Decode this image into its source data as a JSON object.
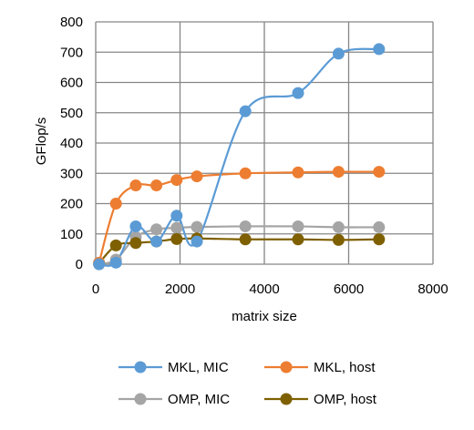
{
  "chart_data": {
    "type": "line",
    "title": "",
    "xlabel": "matrix size",
    "ylabel": "GFlop/s",
    "xlim": [
      0,
      8000
    ],
    "ylim": [
      0,
      800
    ],
    "x_ticks": [
      0,
      2000,
      4000,
      6000,
      8000
    ],
    "y_ticks": [
      0,
      100,
      200,
      300,
      400,
      500,
      600,
      700,
      800
    ],
    "grid": true,
    "legend_position": "bottom",
    "series": [
      {
        "name": "MKL, MIC",
        "color": "#5b9bd5",
        "points": [
          [
            80,
            0
          ],
          [
            480,
            5
          ],
          [
            950,
            125
          ],
          [
            1440,
            75
          ],
          [
            1920,
            160
          ],
          [
            2400,
            75
          ],
          [
            3550,
            505
          ],
          [
            4800,
            565
          ],
          [
            5760,
            695
          ],
          [
            6720,
            710
          ]
        ]
      },
      {
        "name": "MKL, host",
        "color": "#ed7d31",
        "points": [
          [
            80,
            5
          ],
          [
            480,
            200
          ],
          [
            950,
            260
          ],
          [
            1440,
            260
          ],
          [
            1920,
            278
          ],
          [
            2400,
            290
          ],
          [
            3550,
            300
          ],
          [
            4800,
            303
          ],
          [
            5760,
            305
          ],
          [
            6720,
            305
          ]
        ]
      },
      {
        "name": "OMP, MIC",
        "color": "#a5a5a5",
        "points": [
          [
            80,
            0
          ],
          [
            480,
            15
          ],
          [
            950,
            90
          ],
          [
            1440,
            115
          ],
          [
            1920,
            120
          ],
          [
            2400,
            123
          ],
          [
            3550,
            125
          ],
          [
            4800,
            125
          ],
          [
            5760,
            122
          ],
          [
            6720,
            122
          ]
        ]
      },
      {
        "name": "OMP, host",
        "color": "#7f6000",
        "points": [
          [
            80,
            3
          ],
          [
            480,
            62
          ],
          [
            950,
            70
          ],
          [
            1440,
            75
          ],
          [
            1920,
            83
          ],
          [
            2400,
            85
          ],
          [
            3550,
            82
          ],
          [
            4800,
            82
          ],
          [
            5760,
            80
          ],
          [
            6720,
            82
          ]
        ]
      }
    ]
  }
}
